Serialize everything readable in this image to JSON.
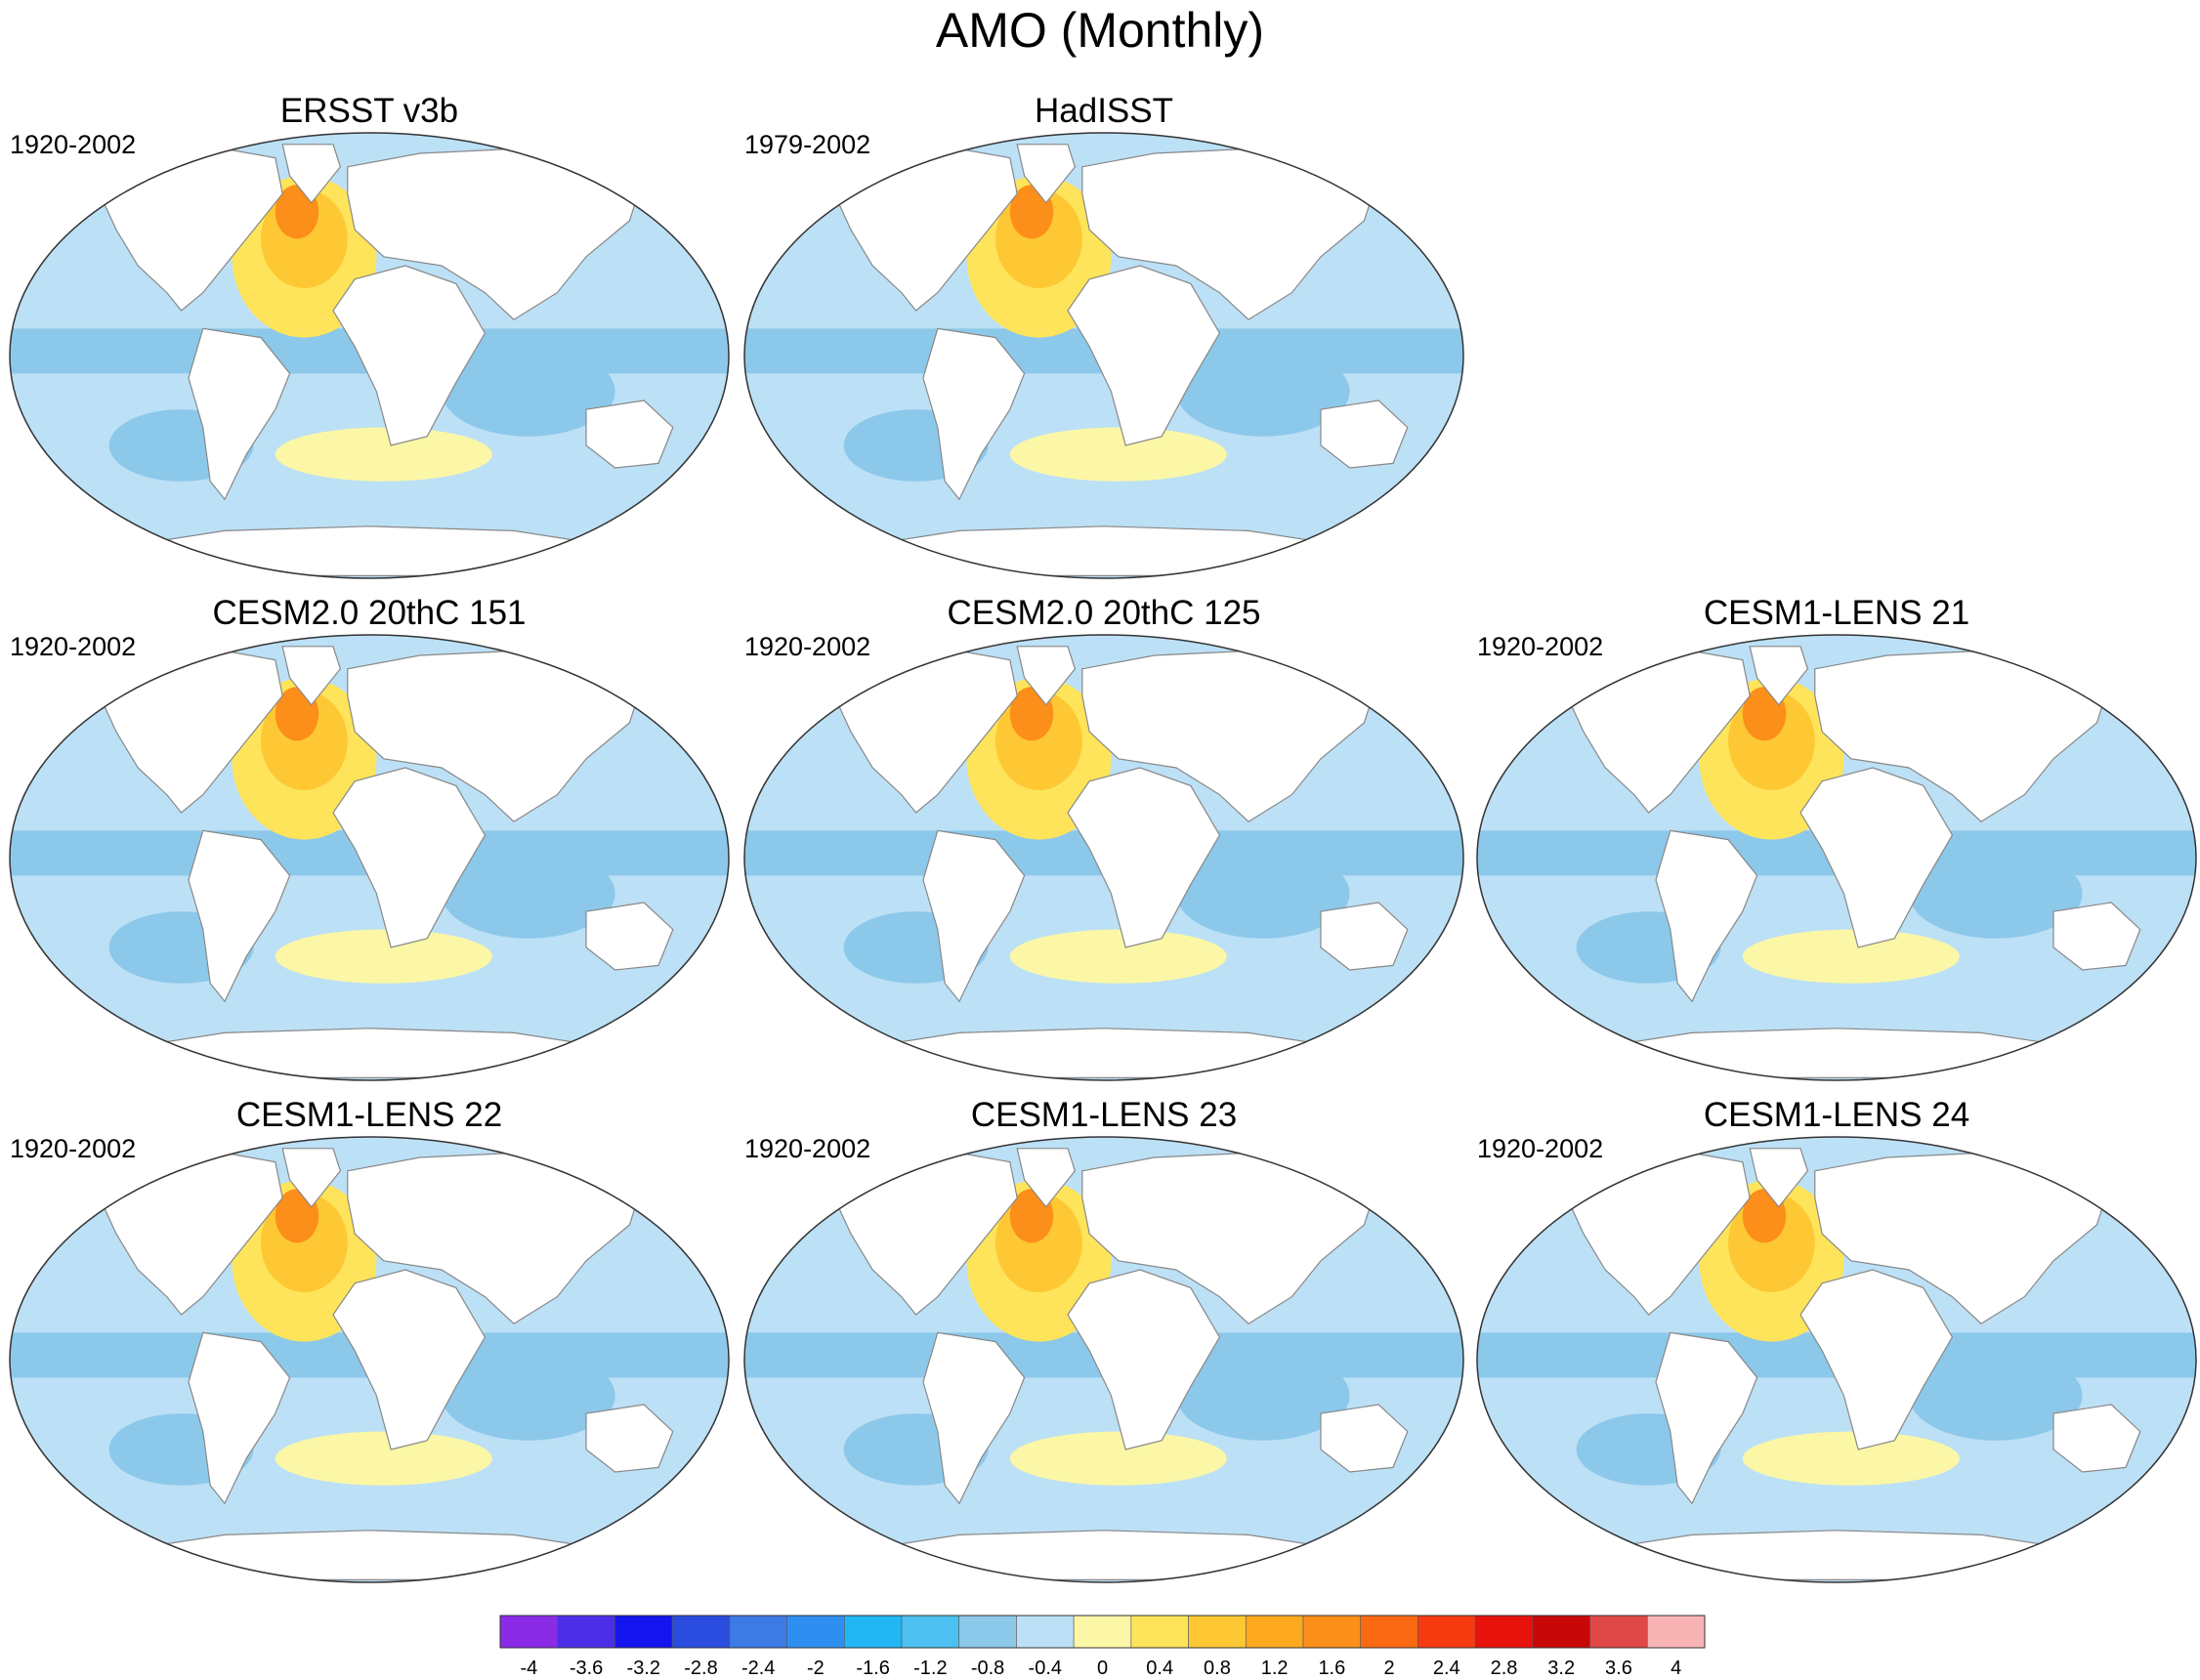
{
  "title": "AMO (Monthly)",
  "panels": [
    {
      "title": "ERSST v3b",
      "period": "1920-2002"
    },
    {
      "title": "HadISST",
      "period": "1979-2002"
    },
    {
      "title": "CESM2.0 20thC 151",
      "period": "1920-2002"
    },
    {
      "title": "CESM2.0 20thC 125",
      "period": "1920-2002"
    },
    {
      "title": "CESM1-LENS 21",
      "period": "1920-2002"
    },
    {
      "title": "CESM1-LENS 22",
      "period": "1920-2002"
    },
    {
      "title": "CESM1-LENS 23",
      "period": "1920-2002"
    },
    {
      "title": "CESM1-LENS 24",
      "period": "1920-2002"
    }
  ],
  "colorbar": {
    "labels": [
      "-4",
      "-3.6",
      "-3.2",
      "-2.8",
      "-2.4",
      "-2",
      "-1.6",
      "-1.2",
      "-0.8",
      "-0.4",
      "0",
      "0.4",
      "0.8",
      "1.2",
      "1.6",
      "2",
      "2.4",
      "2.8",
      "3.2",
      "3.6",
      "4"
    ],
    "colors": [
      "#8a2be8",
      "#4c2ee8",
      "#1414ee",
      "#2a4de0",
      "#3c7ae6",
      "#2f8ff0",
      "#22b6f5",
      "#4cc0f0",
      "#8cc8ea",
      "#bce0f6",
      "#fbf7a6",
      "#fde45a",
      "#fdc833",
      "#fdaa1e",
      "#fc8e1a",
      "#fb6a12",
      "#f83a10",
      "#e8120c",
      "#c80808",
      "#e04848",
      "#f8b4b4"
    ]
  }
}
